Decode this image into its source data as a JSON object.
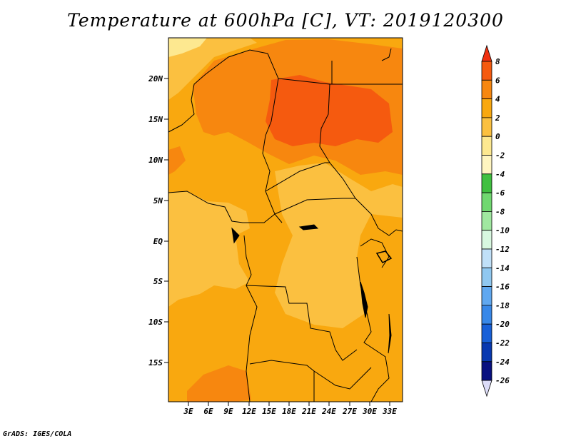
{
  "title": "Temperature at 600hPa [C], VT: 2019120300",
  "footer": "GrADS: IGES/COLA",
  "map": {
    "lat_labels": [
      "20N",
      "15N",
      "10N",
      "5N",
      "EQ",
      "5S",
      "10S",
      "15S"
    ],
    "lon_labels": [
      "3E",
      "6E",
      "9E",
      "12E",
      "15E",
      "18E",
      "21E",
      "24E",
      "27E",
      "30E",
      "33E"
    ]
  },
  "colorbar": {
    "levels": [
      "8",
      "6",
      "4",
      "2",
      "0",
      "-2",
      "-4",
      "-6",
      "-8",
      "-10",
      "-12",
      "-14",
      "-16",
      "-18",
      "-20",
      "-22",
      "-24",
      "-26"
    ],
    "colors": [
      "#f03010",
      "#f55a0f",
      "#f7870f",
      "#f9a80f",
      "#fbc040",
      "#fde890",
      "#fff5c0",
      "#40c040",
      "#70d870",
      "#a0e8a0",
      "#d8f8e0",
      "#c0e0f8",
      "#90c8f0",
      "#60a8f0",
      "#3888e8",
      "#1860d8",
      "#0838b0",
      "#081080",
      "#dcdcf8"
    ]
  }
}
